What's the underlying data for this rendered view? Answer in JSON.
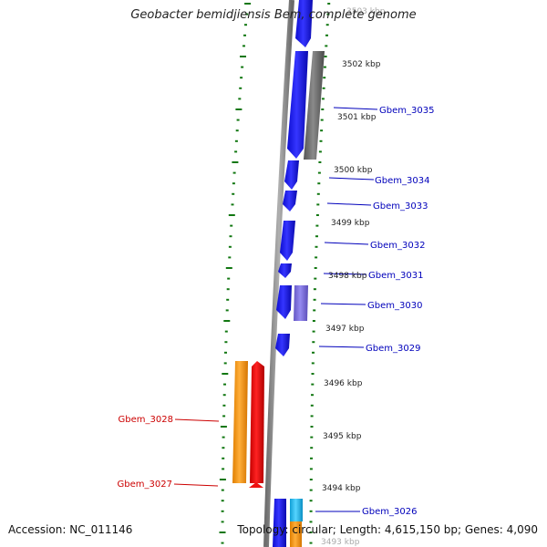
{
  "title": "Geobacter bemidjiensis Bem, complete genome",
  "accession": "Accession: NC_011146",
  "summary": "Topology: circular; Length: 4,615,150 bp; Genes: 4,090",
  "scale_labels": [
    {
      "text": "3503 kbp",
      "kbp": 3503
    },
    {
      "text": "3502 kbp",
      "kbp": 3502
    },
    {
      "text": "3501 kbp",
      "kbp": 3501
    },
    {
      "text": "3500 kbp",
      "kbp": 3500
    },
    {
      "text": "3499 kbp",
      "kbp": 3499
    },
    {
      "text": "3498 kbp",
      "kbp": 3498
    },
    {
      "text": "3497 kbp",
      "kbp": 3497
    },
    {
      "text": "3496 kbp",
      "kbp": 3496
    },
    {
      "text": "3495 kbp",
      "kbp": 3495
    },
    {
      "text": "3494 kbp",
      "kbp": 3494
    },
    {
      "text": "3493 kbp",
      "kbp": 3493
    }
  ],
  "gene_labels": [
    {
      "text": "Gbem_3035",
      "strand": "forward",
      "color": "#0000bb"
    },
    {
      "text": "Gbem_3034",
      "strand": "forward",
      "color": "#0000bb"
    },
    {
      "text": "Gbem_3033",
      "strand": "forward",
      "color": "#0000bb"
    },
    {
      "text": "Gbem_3032",
      "strand": "forward",
      "color": "#0000bb"
    },
    {
      "text": "Gbem_3031",
      "strand": "forward",
      "color": "#0000bb"
    },
    {
      "text": "Gbem_3030",
      "strand": "forward",
      "color": "#0000bb"
    },
    {
      "text": "Gbem_3029",
      "strand": "forward",
      "color": "#0000bb"
    },
    {
      "text": "Gbem_3028",
      "strand": "reverse",
      "color": "#cc0000"
    },
    {
      "text": "Gbem_3027",
      "strand": "reverse",
      "color": "#cc0000"
    },
    {
      "text": "Gbem_3026",
      "strand": "forward",
      "color": "#0000bb"
    }
  ],
  "colors": {
    "forward_cds": "#1a1aee",
    "reverse_cds": "#ee1111",
    "orange_feature": "#f59a1a",
    "gray_feature": "#707070",
    "lavender_feature": "#7b6fd6",
    "cyan_feature": "#22bbee",
    "backbone": "#8a8a8a",
    "ticks": "#117711"
  }
}
